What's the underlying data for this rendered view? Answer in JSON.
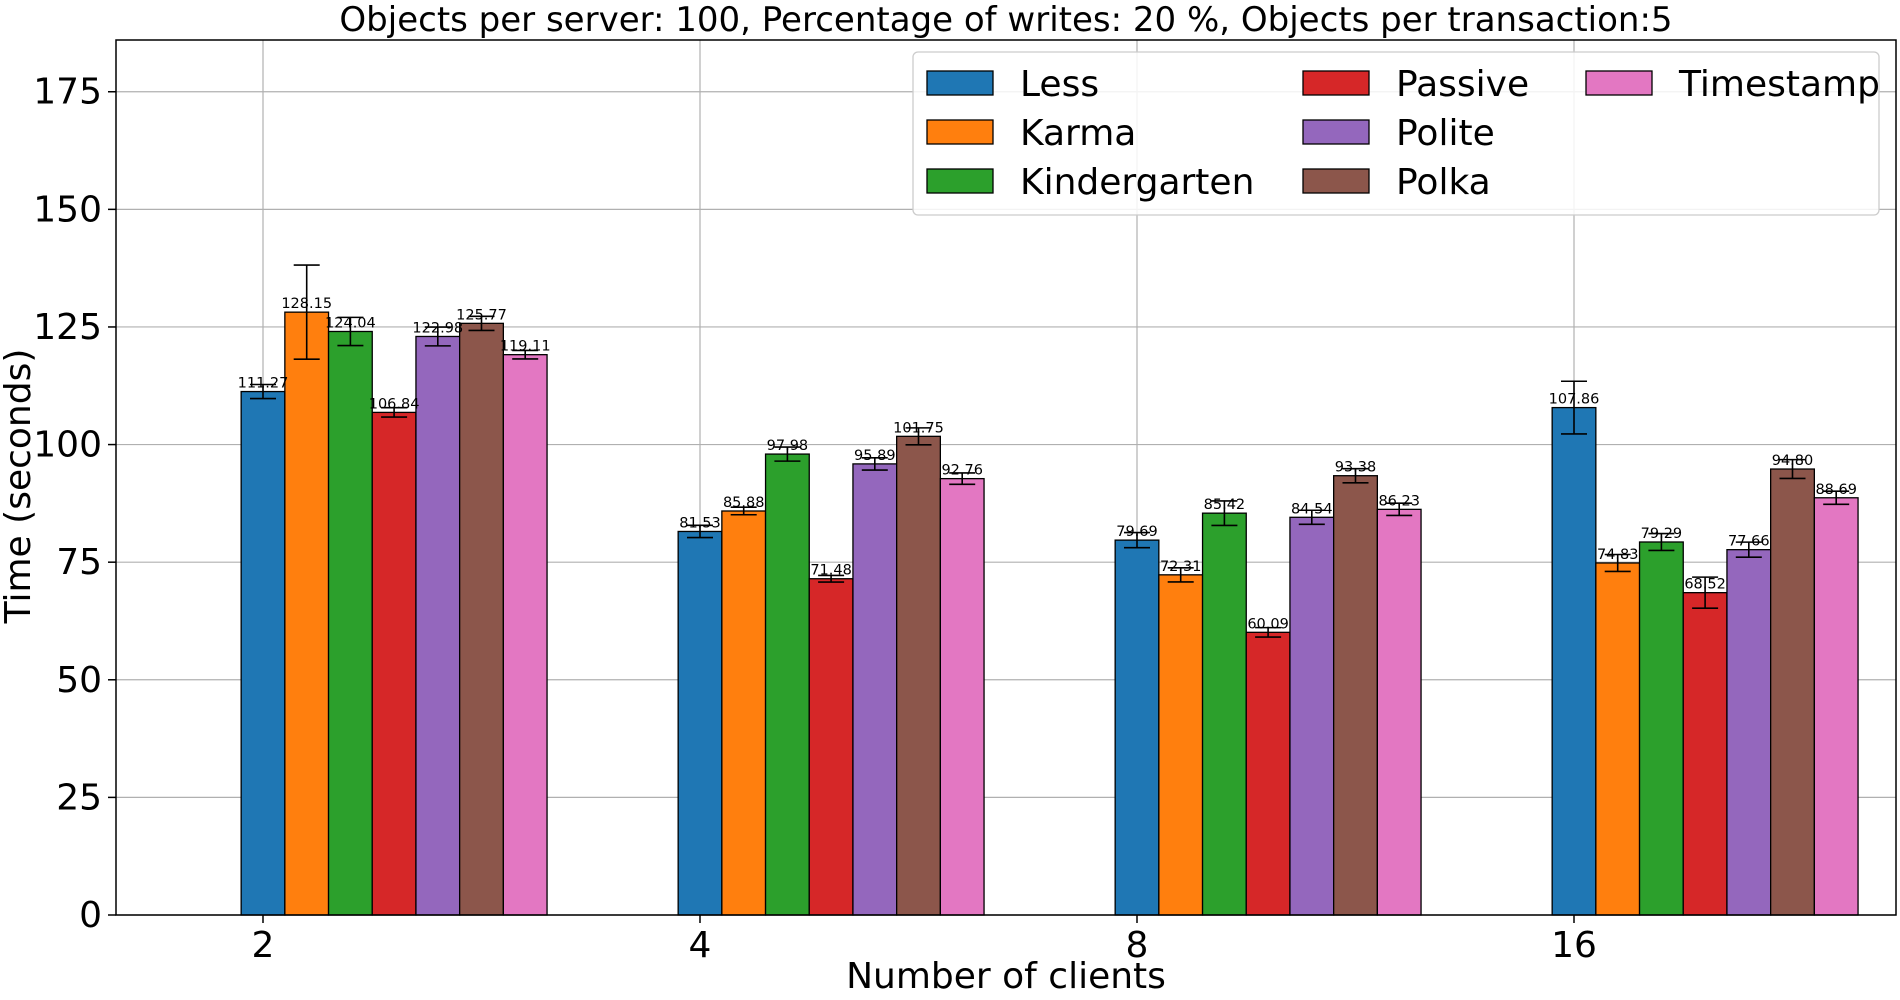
{
  "chart_data": {
    "type": "bar",
    "title": "Objects per server: 100, Percentage of writes: 20 %, Objects per transaction:5",
    "xlabel": "Number of clients",
    "ylabel": "Time (seconds)",
    "categories": [
      "2",
      "4",
      "8",
      "16"
    ],
    "ylim": [
      0,
      186
    ],
    "yticks": [
      0,
      25,
      50,
      75,
      100,
      125,
      150,
      175
    ],
    "grid": true,
    "legend_position": "top-right",
    "series": [
      {
        "name": "Less",
        "color": "#1f77b4",
        "values": [
          111.27,
          81.53,
          79.69,
          107.86
        ],
        "labels": [
          "111.27",
          "81.53",
          "79.69",
          "107.86"
        ],
        "errors": [
          1.5,
          1.3,
          1.6,
          5.6
        ]
      },
      {
        "name": "Karma",
        "color": "#ff7f0e",
        "values": [
          128.15,
          85.88,
          72.31,
          74.83
        ],
        "labels": [
          "128.15",
          "85.88",
          "72.31",
          "74.83"
        ],
        "errors": [
          10.0,
          0.8,
          1.5,
          1.8
        ]
      },
      {
        "name": "Kindergarten",
        "color": "#2ca02c",
        "values": [
          124.04,
          97.98,
          85.42,
          79.29
        ],
        "labels": [
          "124.04",
          "97.98",
          "85.42",
          "79.29"
        ],
        "errors": [
          3.0,
          1.5,
          2.6,
          1.8
        ]
      },
      {
        "name": "Passive",
        "color": "#d62728",
        "values": [
          106.84,
          71.48,
          60.09,
          68.52
        ],
        "labels": [
          "106.84",
          "71.48",
          "60.09",
          "68.52"
        ],
        "errors": [
          1.0,
          0.7,
          1.0,
          3.3
        ]
      },
      {
        "name": "Polite",
        "color": "#9467bd",
        "values": [
          122.98,
          95.89,
          84.54,
          77.66
        ],
        "labels": [
          "122.98",
          "95.89",
          "84.54",
          "77.66"
        ],
        "errors": [
          2.0,
          1.3,
          1.5,
          1.6
        ]
      },
      {
        "name": "Polka",
        "color": "#8c564b",
        "values": [
          125.77,
          101.75,
          93.38,
          94.8
        ],
        "labels": [
          "125.77",
          "101.75",
          "93.38",
          "94.80"
        ],
        "errors": [
          1.5,
          1.8,
          1.5,
          2.0
        ]
      },
      {
        "name": "Timestamp",
        "color": "#e377c2",
        "values": [
          119.11,
          92.76,
          86.23,
          88.69
        ],
        "labels": [
          "119.11",
          "92.76",
          "86.23",
          "88.69"
        ],
        "errors": [
          0.9,
          1.2,
          1.3,
          1.4
        ]
      }
    ]
  }
}
